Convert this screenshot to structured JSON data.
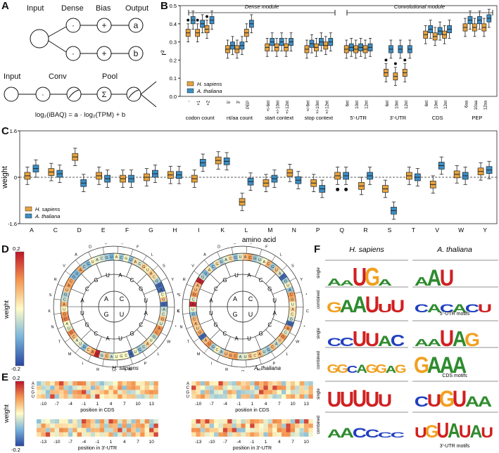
{
  "panel_labels": [
    "A",
    "B",
    "C",
    "D",
    "E",
    "F"
  ],
  "panel_a": {
    "dense_labels": [
      "Input",
      "Dense",
      "Bias",
      "Output"
    ],
    "dense_ops": [
      "·",
      "·",
      "+",
      "+"
    ],
    "outputs": [
      "a",
      "b"
    ],
    "conv_labels": [
      "Input",
      "Conv",
      "Pool"
    ],
    "conv_ops": [
      "·",
      "Σ"
    ],
    "formula": "log₂(iBAQ) = a · log₂(TPM) + b"
  },
  "legend": {
    "human": "H. sapiens",
    "plant": "A. thaliana",
    "human_color": "#E8A33D",
    "plant_color": "#3A8FC7"
  },
  "chart_data": [
    {
      "panel": "B",
      "type": "box",
      "ylabel": "r²",
      "ylim": [
        0,
        0.5
      ],
      "yticks": [
        "0.0",
        "0.1",
        "0.2",
        "0.3",
        "0.4",
        "0.5"
      ],
      "module_labels": [
        "Dense module",
        "Convolutional module"
      ],
      "groups": [
        {
          "label": "codon count",
          "ticks": [
            "-",
            "+1",
            "+2"
          ],
          "human": [
            0.35,
            0.35,
            0.37
          ],
          "plant": [
            0.42,
            0.4,
            0.42
          ]
        },
        {
          "label": "nt/aa count",
          "ticks": [
            "5'",
            "3'",
            "PEP"
          ],
          "human": [
            0.26,
            0.26,
            0.35
          ],
          "plant": [
            0.28,
            0.28,
            0.4
          ]
        },
        {
          "label": "start context",
          "ticks": [
            "+/-6nt",
            "+/-10nt",
            "+/-12nt"
          ],
          "human": [
            0.27,
            0.27,
            0.27
          ],
          "plant": [
            0.3,
            0.3,
            0.3
          ]
        },
        {
          "label": "stop context",
          "ticks": [
            "+/-6nt",
            "+/-10nt",
            "+/-12nt"
          ],
          "human": [
            0.26,
            0.27,
            0.28
          ],
          "plant": [
            0.29,
            0.3,
            0.3
          ]
        },
        {
          "label": "5'-UTR",
          "ticks": [
            "6nt",
            "10nt",
            "12nt"
          ],
          "human": [
            0.26,
            0.26,
            0.26
          ],
          "plant": [
            0.27,
            0.27,
            0.27
          ]
        },
        {
          "label": "3'-UTR",
          "ticks": [
            "6nt",
            "10nt",
            "12nt"
          ],
          "human": [
            0.13,
            0.11,
            0.13
          ],
          "plant": [
            0.26,
            0.26,
            0.26
          ]
        },
        {
          "label": "CDS",
          "ticks": [
            "6nt",
            "10nt",
            "12nt"
          ],
          "human": [
            0.34,
            0.33,
            0.34
          ],
          "plant": [
            0.37,
            0.36,
            0.37
          ]
        },
        {
          "label": "PEP",
          "ticks": [
            "6aa",
            "10aa",
            "12aa"
          ],
          "human": [
            0.38,
            0.38,
            0.38
          ],
          "plant": [
            0.42,
            0.42,
            0.43
          ]
        }
      ]
    },
    {
      "panel": "C",
      "type": "box",
      "ylabel": "weight",
      "xlabel": "amino acid",
      "ylim": [
        -1.6,
        1.6
      ],
      "yticks": [
        "1.6",
        "0",
        "-1.6"
      ],
      "categories": [
        "A",
        "C",
        "D",
        "E",
        "F",
        "G",
        "H",
        "I",
        "K",
        "L",
        "M",
        "N",
        "P",
        "Q",
        "R",
        "S",
        "T",
        "V",
        "W",
        "Y"
      ],
      "human": [
        0.05,
        0.18,
        0.7,
        0.05,
        -0.05,
        0.0,
        0.08,
        -0.05,
        0.58,
        -0.85,
        -0.2,
        0.15,
        -0.2,
        0.05,
        -0.3,
        -0.4,
        0.05,
        -0.25,
        0.1,
        0.2
      ],
      "plant": [
        0.3,
        0.12,
        -0.2,
        -0.05,
        -0.05,
        0.12,
        0.08,
        0.5,
        0.55,
        -0.15,
        -0.05,
        -0.1,
        -0.4,
        0.05,
        0.05,
        -1.15,
        0.0,
        0.4,
        0.05,
        0.25
      ]
    },
    {
      "panel": "D",
      "type": "codon-wheel",
      "colorbar": {
        "label": "weight",
        "max": "0.2",
        "min": "-0.2"
      },
      "titles": [
        "H. sapiens",
        "A. thaliana"
      ],
      "inner_bases": [
        "A",
        "C",
        "G",
        "U"
      ],
      "outer_aa": [
        "G",
        "F",
        "L",
        "S",
        "Y",
        "*",
        "C",
        "*",
        "W",
        "L",
        "P",
        "H",
        "Q",
        "R",
        "I",
        "M",
        "T",
        "N",
        "K",
        "S",
        "R",
        "V",
        "A",
        "D",
        "E"
      ]
    },
    {
      "panel": "E",
      "type": "heatmap",
      "rows": [
        "A",
        "C",
        "G",
        "U"
      ],
      "cds_ticks": [
        "-10",
        "-7",
        "-4",
        "-1",
        "1",
        "4",
        "7",
        "10",
        "13"
      ],
      "utr3_ticks": [
        "-13",
        "-10",
        "-7",
        "-4",
        "-1",
        "1",
        "4",
        "7",
        "10"
      ],
      "xlabel_cds": "position in CDS",
      "xlabel_utr3": "position in 3'-UTR",
      "ylabel": "weight",
      "colorbar": {
        "max": "0.2",
        "min": "-0.2"
      }
    },
    {
      "panel": "F",
      "type": "sequence-logo",
      "columns": [
        "H. sapiens",
        "A. thaliana"
      ],
      "row_labels": [
        "single",
        "combined"
      ],
      "section_labels": [
        "5'-UTR motifs",
        "CDS motifs",
        "3'-UTR motifs"
      ],
      "logos": [
        [
          [
            "A",
            "A",
            "U",
            "G",
            "A"
          ],
          [
            "A",
            "A",
            "U"
          ]
        ],
        [
          [
            "G",
            "A",
            "A",
            "U",
            "U",
            "U"
          ],
          [
            "C",
            "A",
            "C",
            "A",
            "C",
            "U"
          ]
        ],
        [
          [
            "C",
            "C",
            "U",
            "U",
            "A",
            "C"
          ],
          [
            "A",
            "A",
            "U",
            "A",
            "G"
          ]
        ],
        [
          [
            "G",
            "G",
            "C",
            "A",
            "G",
            "G",
            "A",
            "G"
          ],
          [
            "G",
            "A",
            "A",
            "A"
          ]
        ],
        [
          [
            "U",
            "U",
            "U",
            "U",
            "U"
          ],
          [
            "C",
            "U",
            "G",
            "U",
            "A",
            "A"
          ]
        ],
        [
          [
            "A",
            "A",
            "C",
            "C",
            "C",
            "C"
          ],
          [
            "U",
            "G",
            "U",
            "A",
            "U",
            "A",
            "U"
          ]
        ]
      ]
    }
  ]
}
